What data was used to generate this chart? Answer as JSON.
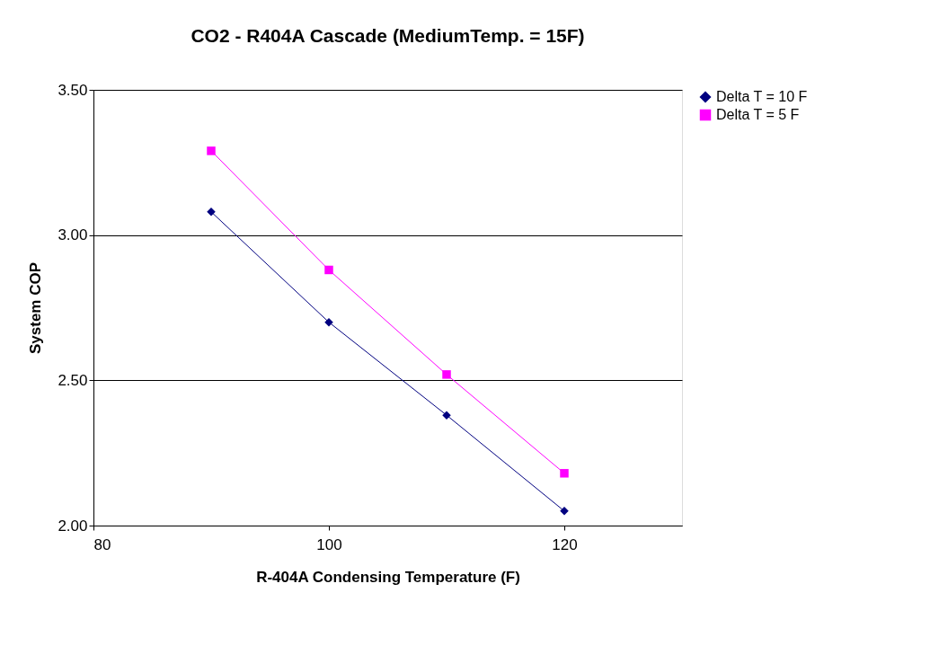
{
  "chart_data": {
    "type": "line",
    "title": "CO2 - R404A Cascade (MediumTemp. = 15F)",
    "xlabel": "R-404A Condensing Temperature (F)",
    "ylabel": "System COP",
    "x": [
      90,
      100,
      110,
      120
    ],
    "series": [
      {
        "name": "Delta T = 10 F",
        "color": "#000080",
        "marker": "diamond",
        "values": [
          3.08,
          2.7,
          2.38,
          2.05
        ]
      },
      {
        "name": "Delta T = 5 F",
        "color": "#ff00ff",
        "marker": "square",
        "values": [
          3.29,
          2.88,
          2.52,
          2.18
        ]
      }
    ],
    "xlim": [
      80,
      130
    ],
    "xticks": [
      80,
      100,
      120
    ],
    "ylim": [
      2.0,
      3.5
    ],
    "yticks": [
      {
        "value": 2.0,
        "label": "2.00"
      },
      {
        "value": 2.5,
        "label": "2.50"
      },
      {
        "value": 3.0,
        "label": "3.00"
      },
      {
        "value": 3.5,
        "label": "3.50"
      }
    ],
    "grid": "y",
    "legend": "right",
    "line_style": "solid"
  }
}
